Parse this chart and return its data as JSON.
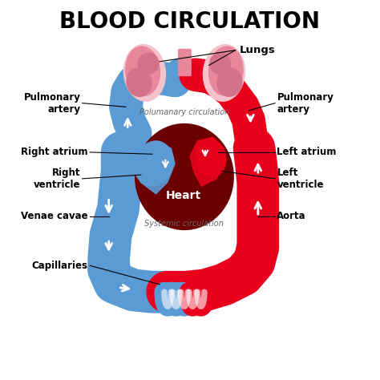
{
  "title": "BLOOD CIRCULATION",
  "title_fontsize": 20,
  "bg_color": "#ffffff",
  "red": "#e8001c",
  "blue": "#5b9bd5",
  "dark_red": "#6b0000",
  "lung_pink": "#e8869a",
  "lung_light": "#f5c2cc",
  "lung_mid": "#d4728a",
  "annotation_fontsize": 8.5,
  "labels": {
    "lungs": "Lungs",
    "pulm_artery_left": "Pulmonary\nartery",
    "pulm_artery_right": "Pulmonary\nartery",
    "right_atrium": "Right atrium",
    "left_atrium": "Left atrium",
    "right_ventricle": "Right\nventricle",
    "left_ventricle": "Left\nventricle",
    "venae_cavae": "Venae cavae",
    "aorta": "Aorta",
    "capillaries": "Capillaries",
    "pulm_circ": "Polumanary circulation",
    "sys_circ": "Systemic circulation",
    "heart": "Heart"
  }
}
